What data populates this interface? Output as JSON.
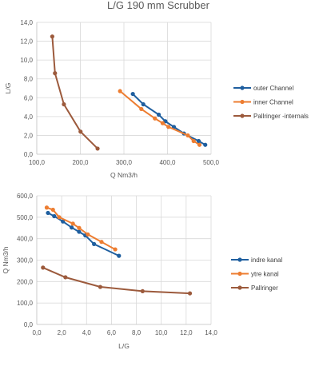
{
  "chart_data": [
    {
      "type": "line",
      "title": "L/G 190 mm Scrubber",
      "xlabel": "Q Nm3/h",
      "ylabel": "L/G",
      "xlim": [
        100,
        550
      ],
      "ylim": [
        0,
        14
      ],
      "xticks": [
        "100,0",
        "200,0",
        "300,0",
        "400,0",
        "500,0"
      ],
      "yticks": [
        "0,0",
        "2,0",
        "4,0",
        "6,0",
        "8,0",
        "10,0",
        "12,0",
        "14,0"
      ],
      "grid": true,
      "legend": "right",
      "series": [
        {
          "name": "outer Channel",
          "color": "#1f5f9f",
          "x": [
            348,
            375,
            415,
            432,
            454,
            480,
            518,
            535
          ],
          "y": [
            6.4,
            5.3,
            4.2,
            3.5,
            2.9,
            2.2,
            1.4,
            1.0
          ]
        },
        {
          "name": "inner Channel",
          "color": "#ed7d31",
          "x": [
            315,
            370,
            405,
            425,
            440,
            490,
            505,
            520
          ],
          "y": [
            6.7,
            4.8,
            3.8,
            3.3,
            2.9,
            2.0,
            1.4,
            1.0
          ]
        },
        {
          "name": "Pallringer -internals",
          "color": "#9c5a3c",
          "x": [
            140,
            147,
            170,
            213,
            257
          ],
          "y": [
            12.5,
            8.6,
            5.3,
            2.4,
            0.6
          ]
        }
      ]
    },
    {
      "type": "line",
      "title": "",
      "xlabel": "L/G",
      "ylabel": "Q Nm3/h",
      "xlim": [
        0,
        14
      ],
      "ylim": [
        0,
        600
      ],
      "xticks": [
        "0,0",
        "2,0",
        "4,0",
        "6,0",
        "8,0",
        "10,0",
        "12,0",
        "14,0"
      ],
      "yticks": [
        "0,0",
        "100,0",
        "200,0",
        "300,0",
        "400,0",
        "500,0",
        "600,0"
      ],
      "grid": true,
      "legend": "right",
      "series": [
        {
          "name": "indre kanal",
          "color": "#1f5f9f",
          "x": [
            0.9,
            1.4,
            2.1,
            2.8,
            3.4,
            3.9,
            4.6,
            6.6
          ],
          "y": [
            520,
            505,
            480,
            452,
            432,
            415,
            375,
            320
          ]
        },
        {
          "name": "ytre kanal",
          "color": "#ed7d31",
          "x": [
            0.8,
            1.3,
            1.8,
            2.9,
            3.4,
            4.1,
            5.2,
            6.3
          ],
          "y": [
            545,
            535,
            500,
            470,
            450,
            420,
            385,
            350
          ]
        },
        {
          "name": "Pallringer",
          "color": "#9c5a3c",
          "x": [
            0.5,
            2.3,
            5.1,
            8.5,
            12.3
          ],
          "y": [
            265,
            220,
            175,
            155,
            145
          ]
        }
      ]
    }
  ]
}
